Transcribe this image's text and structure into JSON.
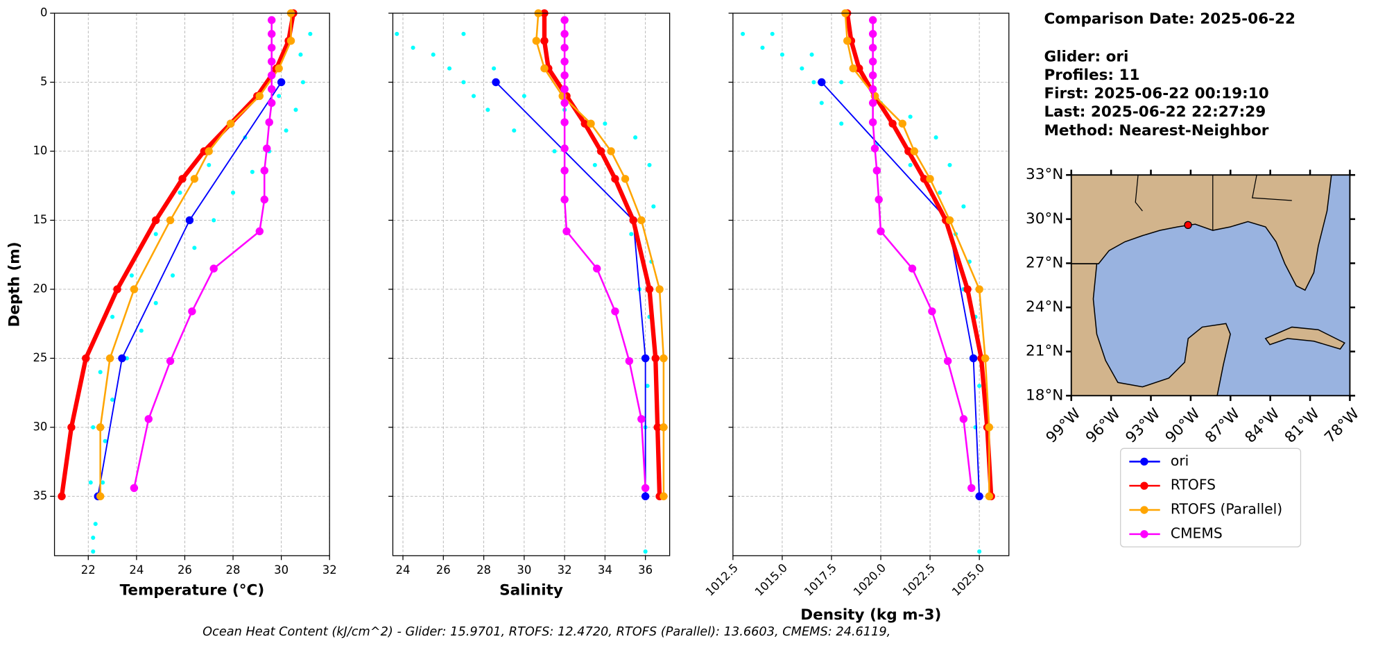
{
  "chart_data": [
    {
      "type": "line",
      "xlabel": "Temperature (°C)",
      "ylabel": "Depth (m)",
      "xlim": [
        20.6,
        32
      ],
      "xticks": [
        22,
        24,
        26,
        28,
        30,
        32
      ],
      "ylim": [
        39.3,
        0
      ],
      "yticks": [
        0,
        5,
        10,
        15,
        20,
        25,
        30,
        35
      ],
      "grid": true,
      "scatter": {
        "color": "#00ffff",
        "x": [
          31.2,
          30.8,
          30.9,
          30.6,
          30.2,
          29.5,
          28.8,
          28.0,
          27.2,
          26.4,
          25.5,
          24.8,
          24.2,
          23.6,
          23.0,
          22.7,
          22.6,
          22.3,
          22.2,
          29.9,
          28.5,
          27.0,
          25.8,
          24.8,
          23.8,
          23.0,
          22.5,
          22.2,
          22.1,
          22.2
        ],
        "y": [
          1.5,
          3,
          5,
          7,
          8.5,
          10,
          11.5,
          13,
          15,
          17,
          19,
          21,
          23,
          25,
          28,
          31,
          34,
          37,
          39,
          6,
          9,
          11,
          13,
          16,
          19,
          22,
          26,
          30,
          34,
          38
        ]
      },
      "series": [
        {
          "name": "ori",
          "color": "#0000ff",
          "x": [
            30.0,
            26.2,
            23.4,
            22.4
          ],
          "y": [
            5,
            15,
            25,
            35
          ]
        },
        {
          "name": "RTOFS",
          "color": "#ff0000",
          "x": [
            30.5,
            30.3,
            29.8,
            29.0,
            27.9,
            26.8,
            25.9,
            24.8,
            23.2,
            21.9,
            21.3,
            20.9
          ],
          "y": [
            0,
            2,
            4,
            6,
            8,
            10,
            12,
            15,
            20,
            25,
            30,
            35
          ]
        },
        {
          "name": "RTOFS (Parallel)",
          "color": "#ffa500",
          "x": [
            30.4,
            30.4,
            29.9,
            29.1,
            27.9,
            27.0,
            26.4,
            25.4,
            23.9,
            22.9,
            22.5,
            22.5
          ],
          "y": [
            0,
            2,
            4,
            6,
            8,
            10,
            12,
            15,
            20,
            25,
            30,
            35
          ]
        },
        {
          "name": "CMEMS",
          "color": "#ff00ff",
          "x": [
            29.6,
            29.6,
            29.6,
            29.6,
            29.6,
            29.6,
            29.6,
            29.5,
            29.4,
            29.3,
            29.3,
            29.1,
            27.2,
            26.3,
            25.4,
            24.5,
            23.9
          ],
          "y": [
            0.5,
            1.5,
            2.5,
            3.5,
            4.5,
            5.5,
            6.5,
            7.9,
            9.8,
            11.4,
            13.5,
            15.8,
            18.5,
            21.6,
            25.2,
            29.4,
            34.4
          ]
        }
      ]
    },
    {
      "type": "line",
      "xlabel": "Salinity",
      "xlim": [
        23.5,
        37.2
      ],
      "xticks": [
        24,
        26,
        28,
        30,
        32,
        34,
        36
      ],
      "grid": true,
      "scatter": {
        "color": "#00ffff",
        "x": [
          23.7,
          24.5,
          25.5,
          26.3,
          27,
          27.5,
          28.2,
          29.5,
          31.5,
          33.5,
          34.8,
          35.3,
          35.7,
          35.9,
          36,
          36,
          36,
          27,
          28.5,
          30,
          32,
          34,
          35.5,
          36.2,
          36.4,
          36.3,
          36.2,
          36.1
        ],
        "y": [
          1.5,
          2.5,
          3,
          4,
          5,
          6,
          7,
          8.5,
          10,
          11,
          13,
          16,
          20,
          25,
          30,
          35,
          39,
          1.5,
          4,
          6,
          7,
          8,
          9,
          11,
          14,
          18,
          22,
          27
        ]
      },
      "series": [
        {
          "color": "#0000ff",
          "x": [
            28.6,
            35.4,
            36.0,
            36.0
          ],
          "y": [
            5,
            15,
            25,
            35
          ]
        },
        {
          "color": "#ff0000",
          "x": [
            31.0,
            31.0,
            31.2,
            32.1,
            33.0,
            33.8,
            34.5,
            35.4,
            36.2,
            36.5,
            36.6,
            36.7
          ],
          "y": [
            0,
            2,
            4,
            6,
            8,
            10,
            12,
            15,
            20,
            25,
            30,
            35
          ]
        },
        {
          "color": "#ffa500",
          "x": [
            30.7,
            30.6,
            31.0,
            31.9,
            33.3,
            34.3,
            35.0,
            35.8,
            36.7,
            36.9,
            36.9,
            36.9
          ],
          "y": [
            0,
            2,
            4,
            6,
            8,
            10,
            12,
            15,
            20,
            25,
            30,
            35
          ]
        },
        {
          "color": "#ff00ff",
          "x": [
            32.0,
            32.0,
            32.0,
            32.0,
            32.0,
            32.0,
            32.0,
            32.0,
            32.0,
            32.0,
            32.0,
            32.1,
            33.6,
            34.5,
            35.2,
            35.8,
            36.0
          ],
          "y": [
            0.5,
            1.5,
            2.5,
            3.5,
            4.5,
            5.5,
            6.5,
            7.9,
            9.8,
            11.4,
            13.5,
            15.8,
            18.5,
            21.6,
            25.2,
            29.4,
            34.4
          ]
        }
      ]
    },
    {
      "type": "line",
      "xlabel": "Density (kg m-3)",
      "xlim": [
        1012.5,
        1026.5
      ],
      "xticks": [
        1012.5,
        {
          "value": 1015,
          "label": "1015.0"
        },
        1017.5,
        {
          "value": 1020,
          "label": "1020.0"
        },
        1022.5,
        {
          "value": 1025,
          "label": "1025.0"
        }
      ],
      "grid": true,
      "scatter": {
        "color": "#00ffff",
        "x": [
          1013,
          1014,
          1015,
          1016,
          1016.6,
          1017,
          1018,
          1019.8,
          1021.5,
          1023,
          1023.8,
          1024.2,
          1024.6,
          1024.8,
          1025,
          1025,
          1014.5,
          1016.5,
          1018,
          1020,
          1021.5,
          1022.8,
          1023.5,
          1024.2,
          1024.5,
          1024.8,
          1025
        ],
        "y": [
          1.5,
          2.5,
          3,
          4,
          5,
          6.5,
          8,
          9.5,
          11,
          13,
          16,
          20,
          25,
          30,
          35,
          39,
          1.5,
          3,
          5,
          6.5,
          7.5,
          9,
          11,
          14,
          18,
          22,
          27
        ]
      },
      "series": [
        {
          "color": "#0000ff",
          "x": [
            1017.0,
            1023.4,
            1024.7,
            1025.0
          ],
          "y": [
            5,
            15,
            25,
            35
          ]
        },
        {
          "color": "#ff0000",
          "x": [
            1018.3,
            1018.5,
            1018.9,
            1019.7,
            1020.6,
            1021.4,
            1022.2,
            1023.3,
            1024.4,
            1025.1,
            1025.4,
            1025.6
          ],
          "y": [
            0,
            2,
            4,
            6,
            8,
            10,
            12,
            15,
            20,
            25,
            30,
            35
          ]
        },
        {
          "color": "#ffa500",
          "x": [
            1018.2,
            1018.3,
            1018.6,
            1019.7,
            1021.1,
            1021.7,
            1022.5,
            1023.5,
            1025.0,
            1025.3,
            1025.5,
            1025.5
          ],
          "y": [
            0,
            2,
            4,
            6,
            8,
            10,
            12,
            15,
            20,
            25,
            30,
            35
          ]
        },
        {
          "color": "#ff00ff",
          "x": [
            1019.6,
            1019.6,
            1019.6,
            1019.6,
            1019.6,
            1019.6,
            1019.6,
            1019.6,
            1019.7,
            1019.8,
            1019.9,
            1020.0,
            1021.6,
            1022.6,
            1023.4,
            1024.2,
            1024.6
          ],
          "y": [
            0.5,
            1.5,
            2.5,
            3.5,
            4.5,
            5.5,
            6.5,
            7.9,
            9.8,
            11.4,
            13.5,
            15.8,
            18.5,
            21.6,
            25.2,
            29.4,
            34.4
          ]
        }
      ]
    },
    {
      "type": "map",
      "xlim": [
        -99,
        -78
      ],
      "xticks": [
        {
          "value": -99,
          "label": "99°W"
        },
        {
          "value": -96,
          "label": "96°W"
        },
        {
          "value": -93,
          "label": "93°W"
        },
        {
          "value": -90,
          "label": "90°W"
        },
        {
          "value": -87,
          "label": "87°W"
        },
        {
          "value": -84,
          "label": "84°W"
        },
        {
          "value": -81,
          "label": "81°W"
        },
        {
          "value": -78,
          "label": "78°W"
        }
      ],
      "ylim": [
        18,
        33
      ],
      "yticks": [
        {
          "value": 18,
          "label": "18°N"
        },
        {
          "value": 21,
          "label": "21°N"
        },
        {
          "value": 24,
          "label": "24°N"
        },
        {
          "value": 27,
          "label": "27°N"
        },
        {
          "value": 30,
          "label": "30°N"
        },
        {
          "value": 33,
          "label": "33°N"
        }
      ],
      "points": {
        "color": "#ff0000",
        "lon": [
          -90.2
        ],
        "lat": [
          29.6
        ]
      }
    }
  ],
  "info": [
    "Comparison Date: 2025-06-22",
    "Glider: ori",
    "Profiles: 11",
    "First: 2025-06-22 00:19:10",
    "Last: 2025-06-22 22:27:29",
    "Method: Nearest-Neighbor"
  ],
  "footer": "Ocean Heat Content (kJ/cm^2) - Glider: 15.9701,  RTOFS: 12.4720,  RTOFS (Parallel): 13.6603,  CMEMS: 24.6119,"
}
